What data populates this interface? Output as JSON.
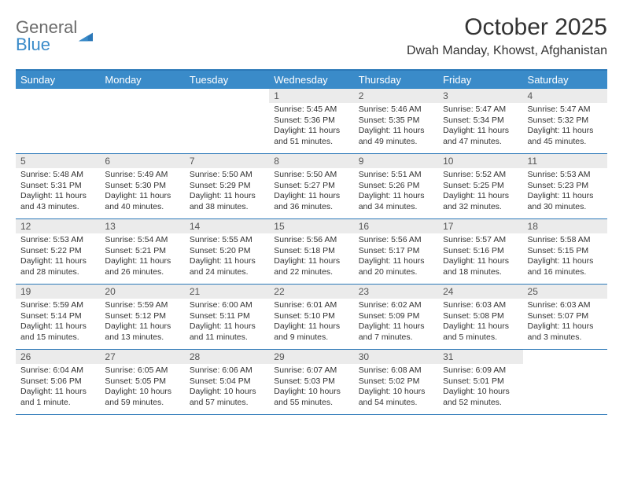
{
  "logo": {
    "line1": "General",
    "line2": "Blue",
    "accent_color": "#3a8bc9"
  },
  "title": "October 2025",
  "location": "Dwah Manday, Khowst, Afghanistan",
  "day_names": [
    "Sunday",
    "Monday",
    "Tuesday",
    "Wednesday",
    "Thursday",
    "Friday",
    "Saturday"
  ],
  "colors": {
    "header_bg": "#3a8bc9",
    "header_rule": "#2b78b8",
    "date_bg": "#ebebeb",
    "text": "#333333"
  },
  "weeks": [
    [
      {
        "date": "",
        "sunrise": "",
        "sunset": "",
        "daylight": ""
      },
      {
        "date": "",
        "sunrise": "",
        "sunset": "",
        "daylight": ""
      },
      {
        "date": "",
        "sunrise": "",
        "sunset": "",
        "daylight": ""
      },
      {
        "date": "1",
        "sunrise": "Sunrise: 5:45 AM",
        "sunset": "Sunset: 5:36 PM",
        "daylight": "Daylight: 11 hours and 51 minutes."
      },
      {
        "date": "2",
        "sunrise": "Sunrise: 5:46 AM",
        "sunset": "Sunset: 5:35 PM",
        "daylight": "Daylight: 11 hours and 49 minutes."
      },
      {
        "date": "3",
        "sunrise": "Sunrise: 5:47 AM",
        "sunset": "Sunset: 5:34 PM",
        "daylight": "Daylight: 11 hours and 47 minutes."
      },
      {
        "date": "4",
        "sunrise": "Sunrise: 5:47 AM",
        "sunset": "Sunset: 5:32 PM",
        "daylight": "Daylight: 11 hours and 45 minutes."
      }
    ],
    [
      {
        "date": "5",
        "sunrise": "Sunrise: 5:48 AM",
        "sunset": "Sunset: 5:31 PM",
        "daylight": "Daylight: 11 hours and 43 minutes."
      },
      {
        "date": "6",
        "sunrise": "Sunrise: 5:49 AM",
        "sunset": "Sunset: 5:30 PM",
        "daylight": "Daylight: 11 hours and 40 minutes."
      },
      {
        "date": "7",
        "sunrise": "Sunrise: 5:50 AM",
        "sunset": "Sunset: 5:29 PM",
        "daylight": "Daylight: 11 hours and 38 minutes."
      },
      {
        "date": "8",
        "sunrise": "Sunrise: 5:50 AM",
        "sunset": "Sunset: 5:27 PM",
        "daylight": "Daylight: 11 hours and 36 minutes."
      },
      {
        "date": "9",
        "sunrise": "Sunrise: 5:51 AM",
        "sunset": "Sunset: 5:26 PM",
        "daylight": "Daylight: 11 hours and 34 minutes."
      },
      {
        "date": "10",
        "sunrise": "Sunrise: 5:52 AM",
        "sunset": "Sunset: 5:25 PM",
        "daylight": "Daylight: 11 hours and 32 minutes."
      },
      {
        "date": "11",
        "sunrise": "Sunrise: 5:53 AM",
        "sunset": "Sunset: 5:23 PM",
        "daylight": "Daylight: 11 hours and 30 minutes."
      }
    ],
    [
      {
        "date": "12",
        "sunrise": "Sunrise: 5:53 AM",
        "sunset": "Sunset: 5:22 PM",
        "daylight": "Daylight: 11 hours and 28 minutes."
      },
      {
        "date": "13",
        "sunrise": "Sunrise: 5:54 AM",
        "sunset": "Sunset: 5:21 PM",
        "daylight": "Daylight: 11 hours and 26 minutes."
      },
      {
        "date": "14",
        "sunrise": "Sunrise: 5:55 AM",
        "sunset": "Sunset: 5:20 PM",
        "daylight": "Daylight: 11 hours and 24 minutes."
      },
      {
        "date": "15",
        "sunrise": "Sunrise: 5:56 AM",
        "sunset": "Sunset: 5:18 PM",
        "daylight": "Daylight: 11 hours and 22 minutes."
      },
      {
        "date": "16",
        "sunrise": "Sunrise: 5:56 AM",
        "sunset": "Sunset: 5:17 PM",
        "daylight": "Daylight: 11 hours and 20 minutes."
      },
      {
        "date": "17",
        "sunrise": "Sunrise: 5:57 AM",
        "sunset": "Sunset: 5:16 PM",
        "daylight": "Daylight: 11 hours and 18 minutes."
      },
      {
        "date": "18",
        "sunrise": "Sunrise: 5:58 AM",
        "sunset": "Sunset: 5:15 PM",
        "daylight": "Daylight: 11 hours and 16 minutes."
      }
    ],
    [
      {
        "date": "19",
        "sunrise": "Sunrise: 5:59 AM",
        "sunset": "Sunset: 5:14 PM",
        "daylight": "Daylight: 11 hours and 15 minutes."
      },
      {
        "date": "20",
        "sunrise": "Sunrise: 5:59 AM",
        "sunset": "Sunset: 5:12 PM",
        "daylight": "Daylight: 11 hours and 13 minutes."
      },
      {
        "date": "21",
        "sunrise": "Sunrise: 6:00 AM",
        "sunset": "Sunset: 5:11 PM",
        "daylight": "Daylight: 11 hours and 11 minutes."
      },
      {
        "date": "22",
        "sunrise": "Sunrise: 6:01 AM",
        "sunset": "Sunset: 5:10 PM",
        "daylight": "Daylight: 11 hours and 9 minutes."
      },
      {
        "date": "23",
        "sunrise": "Sunrise: 6:02 AM",
        "sunset": "Sunset: 5:09 PM",
        "daylight": "Daylight: 11 hours and 7 minutes."
      },
      {
        "date": "24",
        "sunrise": "Sunrise: 6:03 AM",
        "sunset": "Sunset: 5:08 PM",
        "daylight": "Daylight: 11 hours and 5 minutes."
      },
      {
        "date": "25",
        "sunrise": "Sunrise: 6:03 AM",
        "sunset": "Sunset: 5:07 PM",
        "daylight": "Daylight: 11 hours and 3 minutes."
      }
    ],
    [
      {
        "date": "26",
        "sunrise": "Sunrise: 6:04 AM",
        "sunset": "Sunset: 5:06 PM",
        "daylight": "Daylight: 11 hours and 1 minute."
      },
      {
        "date": "27",
        "sunrise": "Sunrise: 6:05 AM",
        "sunset": "Sunset: 5:05 PM",
        "daylight": "Daylight: 10 hours and 59 minutes."
      },
      {
        "date": "28",
        "sunrise": "Sunrise: 6:06 AM",
        "sunset": "Sunset: 5:04 PM",
        "daylight": "Daylight: 10 hours and 57 minutes."
      },
      {
        "date": "29",
        "sunrise": "Sunrise: 6:07 AM",
        "sunset": "Sunset: 5:03 PM",
        "daylight": "Daylight: 10 hours and 55 minutes."
      },
      {
        "date": "30",
        "sunrise": "Sunrise: 6:08 AM",
        "sunset": "Sunset: 5:02 PM",
        "daylight": "Daylight: 10 hours and 54 minutes."
      },
      {
        "date": "31",
        "sunrise": "Sunrise: 6:09 AM",
        "sunset": "Sunset: 5:01 PM",
        "daylight": "Daylight: 10 hours and 52 minutes."
      },
      {
        "date": "",
        "sunrise": "",
        "sunset": "",
        "daylight": ""
      }
    ]
  ]
}
